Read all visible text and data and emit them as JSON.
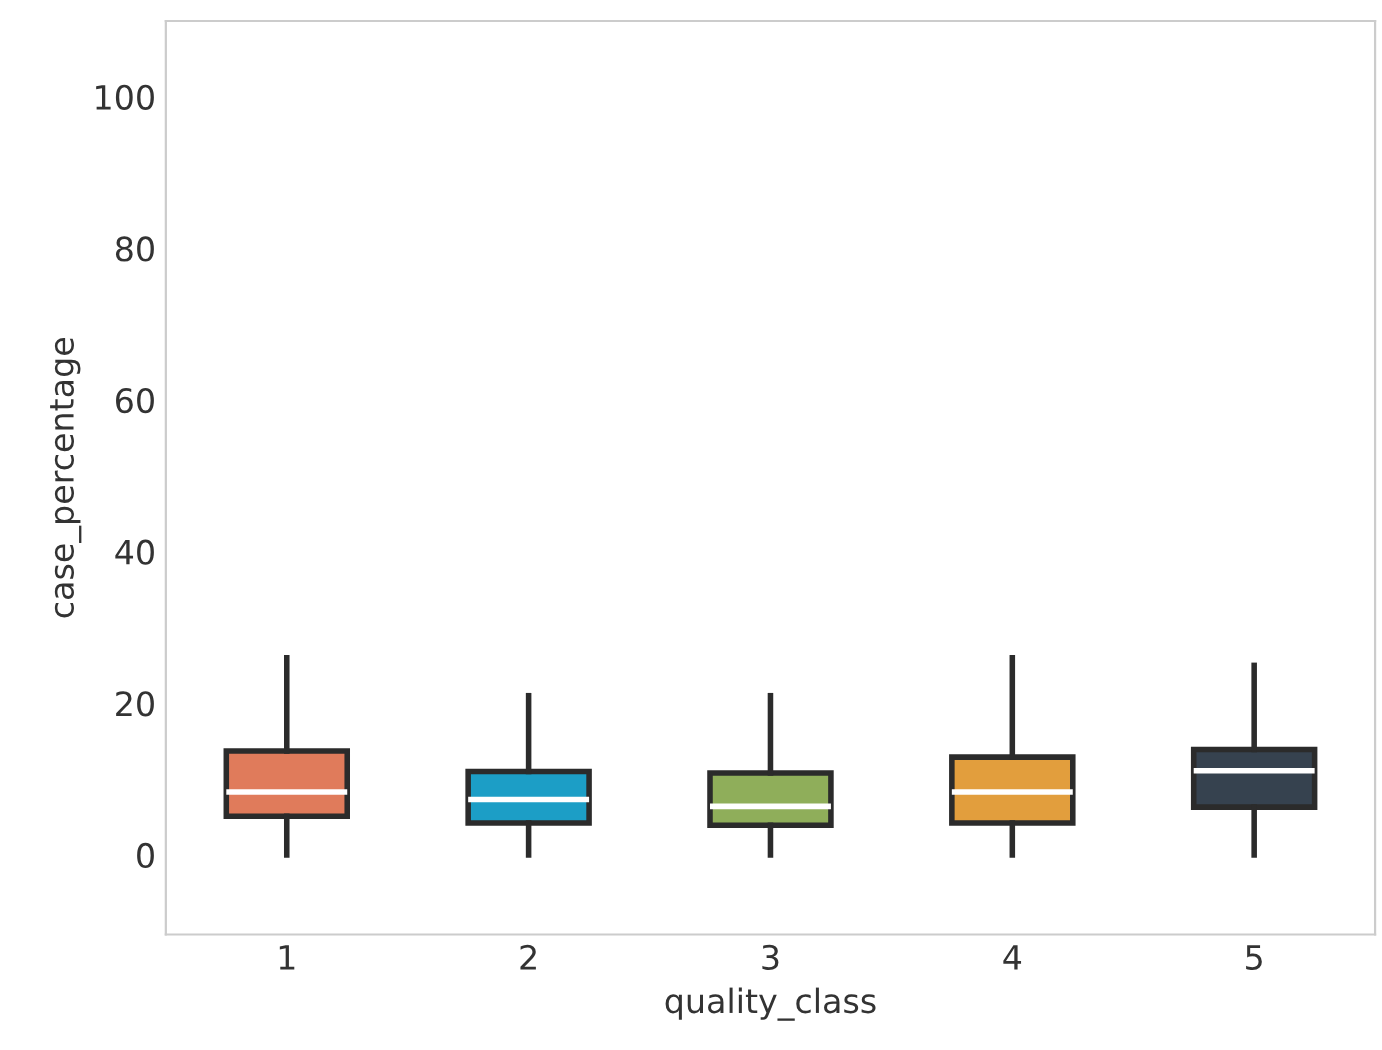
{
  "chart_data": {
    "type": "box",
    "xlabel": "quality_class",
    "ylabel": "case_percentage",
    "categories": [
      "1",
      "2",
      "3",
      "4",
      "5"
    ],
    "colors": [
      "#e07b5b",
      "#1c9ec6",
      "#8fae5a",
      "#e29e3d",
      "#36424f"
    ],
    "boxes": [
      {
        "low": 0,
        "q1": 5.1,
        "median": 8.3,
        "q3": 13.7,
        "high": 26
      },
      {
        "low": 0,
        "q1": 4.2,
        "median": 7.3,
        "q3": 11,
        "high": 21
      },
      {
        "low": 0,
        "q1": 3.9,
        "median": 6.4,
        "q3": 10.8,
        "high": 21
      },
      {
        "low": 0,
        "q1": 4.2,
        "median": 8.3,
        "q3": 12.9,
        "high": 26
      },
      {
        "low": 0,
        "q1": 6.3,
        "median": 11.1,
        "q3": 13.9,
        "high": 25
      }
    ],
    "ylim": [
      -10.5,
      110
    ],
    "yticks": [
      0,
      20,
      40,
      60,
      80,
      100
    ],
    "grid": false
  }
}
